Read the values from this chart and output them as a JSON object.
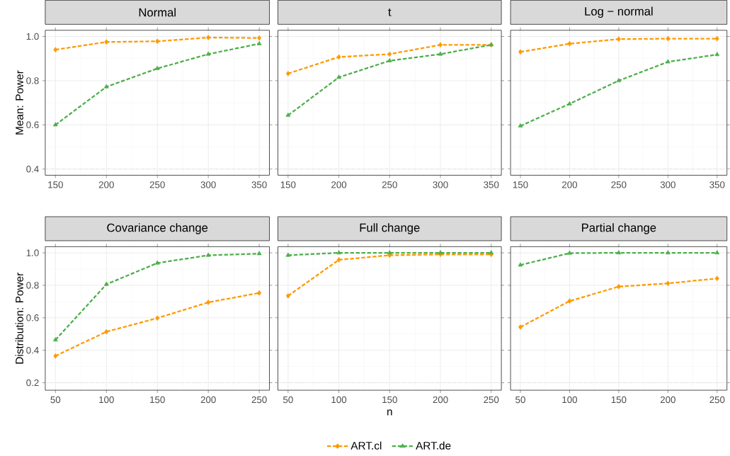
{
  "chart_data": [
    {
      "type": "line",
      "title": "Normal",
      "ylabel": "Mean: Power",
      "x": [
        150,
        200,
        250,
        300,
        350
      ],
      "xlim": [
        140,
        360
      ],
      "xticks": [
        150,
        200,
        250,
        300,
        350
      ],
      "ylim": [
        0.372,
        1.028
      ],
      "yticks": [
        0.4,
        0.6,
        0.8,
        {
          "value": 1.0,
          "label": "1.0"
        }
      ],
      "grid": true,
      "line_style": "dashed",
      "ref_lines": [
        {
          "axis": "y",
          "value": 0.4,
          "color": "#e3e3e3",
          "line_style": "dashed"
        }
      ],
      "series": [
        {
          "color": "#ff9900",
          "marker": "diamond",
          "values": [
            0.94,
            0.975,
            0.978,
            0.995,
            0.993
          ]
        },
        {
          "color": "#4daf4a",
          "marker": "triangle",
          "values": [
            0.6,
            0.772,
            0.855,
            0.92,
            0.967
          ]
        }
      ]
    },
    {
      "type": "line",
      "title": "t",
      "x": [
        150,
        200,
        250,
        300,
        350
      ],
      "xlim": [
        140,
        360
      ],
      "xticks": [
        150,
        200,
        250,
        300,
        350
      ],
      "ylim": [
        0.372,
        1.028
      ],
      "yticks": [
        0.4,
        0.6,
        0.8,
        1.0
      ],
      "grid": true,
      "line_style": "dashed",
      "tick_labels": "x",
      "ref_lines": [
        {
          "axis": "y",
          "value": 0.4,
          "color": "#e3e3e3",
          "line_style": "dashed"
        }
      ],
      "series": [
        {
          "color": "#ff9900",
          "marker": "diamond",
          "values": [
            0.832,
            0.907,
            0.92,
            0.962,
            0.962
          ]
        },
        {
          "color": "#4daf4a",
          "marker": "triangle",
          "values": [
            0.643,
            0.815,
            0.89,
            0.92,
            0.962
          ]
        }
      ]
    },
    {
      "type": "line",
      "title": "Log − normal",
      "x": [
        150,
        200,
        250,
        300,
        350
      ],
      "xlim": [
        140,
        360
      ],
      "xticks": [
        150,
        200,
        250,
        300,
        350
      ],
      "ylim": [
        0.372,
        1.028
      ],
      "yticks": [
        0.4,
        0.6,
        0.8,
        1.0
      ],
      "grid": true,
      "line_style": "dashed",
      "tick_labels": "x",
      "ref_lines": [
        {
          "axis": "y",
          "value": 0.4,
          "color": "#e3e3e3",
          "line_style": "dashed"
        }
      ],
      "series": [
        {
          "color": "#ff9900",
          "marker": "diamond",
          "values": [
            0.93,
            0.967,
            0.988,
            0.99,
            0.99
          ]
        },
        {
          "color": "#4daf4a",
          "marker": "triangle",
          "values": [
            0.595,
            0.695,
            0.8,
            0.885,
            0.918
          ]
        }
      ]
    },
    {
      "type": "line",
      "title": "Covariance change",
      "ylabel": "Distribution: Power",
      "x": [
        50,
        100,
        150,
        200,
        250
      ],
      "xlim": [
        40,
        260
      ],
      "xticks": [
        50,
        100,
        150,
        200,
        250
      ],
      "ylim": [
        0.154,
        1.038
      ],
      "yticks": [
        0.2,
        0.4,
        0.6,
        0.8,
        {
          "value": 1.0,
          "label": "1.0"
        }
      ],
      "grid": true,
      "line_style": "dashed",
      "ref_lines": [
        {
          "axis": "y",
          "value": 0.2,
          "color": "#e3e3e3",
          "line_style": "dashed"
        }
      ],
      "series": [
        {
          "color": "#ff9900",
          "marker": "diamond",
          "values": [
            0.365,
            0.514,
            0.598,
            0.695,
            0.753
          ]
        },
        {
          "color": "#4daf4a",
          "marker": "triangle",
          "values": [
            0.464,
            0.806,
            0.937,
            0.985,
            0.995
          ]
        }
      ]
    },
    {
      "type": "line",
      "title": "Full change",
      "xlabel": "n",
      "x": [
        50,
        100,
        150,
        200,
        250
      ],
      "xlim": [
        40,
        260
      ],
      "xticks": [
        50,
        100,
        150,
        200,
        250
      ],
      "ylim": [
        0.154,
        1.038
      ],
      "yticks": [
        0.2,
        0.4,
        0.6,
        0.8,
        1.0
      ],
      "grid": true,
      "legend": "bottom",
      "line_style": "dashed",
      "tick_labels": "x",
      "ref_lines": [
        {
          "axis": "y",
          "value": 0.2,
          "color": "#e3e3e3",
          "line_style": "dashed"
        }
      ],
      "series": [
        {
          "name": "ART.cl",
          "color": "#ff9900",
          "marker": "diamond",
          "values": [
            0.735,
            0.957,
            0.985,
            0.99,
            0.99
          ]
        },
        {
          "name": "ART.de",
          "color": "#4daf4a",
          "marker": "triangle",
          "values": [
            0.985,
            1.0,
            1.0,
            1.0,
            1.0
          ]
        }
      ]
    },
    {
      "type": "line",
      "title": "Partial change",
      "x": [
        50,
        100,
        150,
        200,
        250
      ],
      "xlim": [
        40,
        260
      ],
      "xticks": [
        50,
        100,
        150,
        200,
        250
      ],
      "ylim": [
        0.154,
        1.038
      ],
      "yticks": [
        0.2,
        0.4,
        0.6,
        0.8,
        1.0
      ],
      "grid": true,
      "line_style": "dashed",
      "tick_labels": "x",
      "ref_lines": [
        {
          "axis": "y",
          "value": 0.2,
          "color": "#e3e3e3",
          "line_style": "dashed"
        }
      ],
      "series": [
        {
          "color": "#ff9900",
          "marker": "diamond",
          "values": [
            0.543,
            0.703,
            0.792,
            0.812,
            0.842
          ]
        },
        {
          "color": "#4daf4a",
          "marker": "triangle",
          "values": [
            0.925,
            0.998,
            1.0,
            1.0,
            1.0
          ]
        }
      ]
    }
  ]
}
